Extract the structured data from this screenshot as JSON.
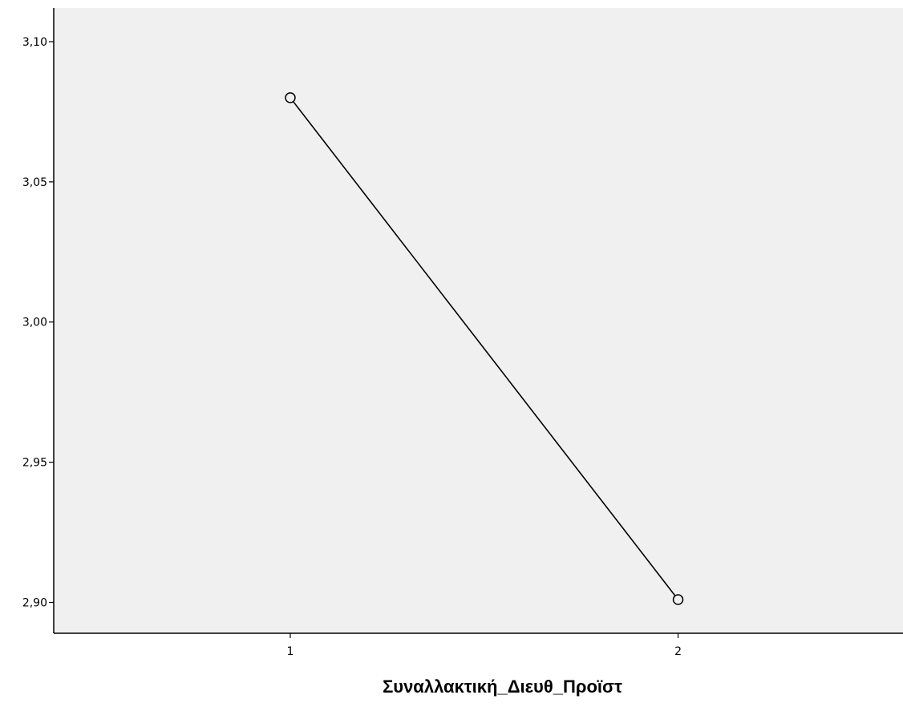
{
  "chart_data": {
    "type": "line",
    "title": "",
    "xlabel": "Συναλλακτική_Διευθ_Προϊστ",
    "ylabel": "",
    "categories": [
      "1",
      "2"
    ],
    "series": [
      {
        "values": [
          3.08,
          2.901
        ]
      }
    ],
    "x_range": [
      0.39,
      2.58
    ],
    "ylim": [
      2.889,
      3.112
    ],
    "yticks": [
      2.9,
      2.95,
      3.0,
      3.05,
      3.1
    ],
    "ytick_labels": [
      "2,90",
      "2,95",
      "3,00",
      "3,05",
      "3,10"
    ],
    "xtick_labels": [
      "1",
      "2"
    ],
    "marker": "open-circle",
    "grid": false,
    "legend": "none",
    "colors": {
      "plot_background": "#f0f0f0",
      "line": "#000000",
      "axis": "#000000",
      "marker_fill": "#f0f0f0"
    }
  }
}
